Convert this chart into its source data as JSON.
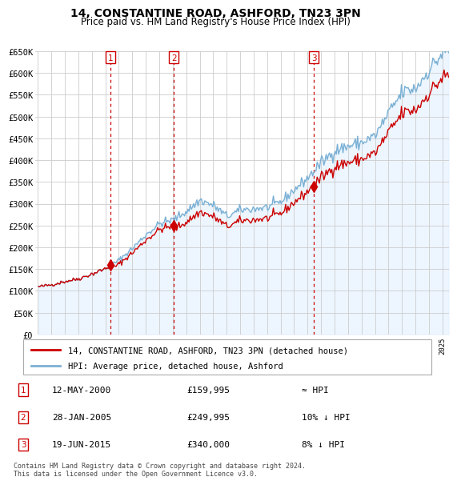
{
  "title": "14, CONSTANTINE ROAD, ASHFORD, TN23 3PN",
  "subtitle": "Price paid vs. HM Land Registry's House Price Index (HPI)",
  "footer": "Contains HM Land Registry data © Crown copyright and database right 2024.\nThis data is licensed under the Open Government Licence v3.0.",
  "legend_property": "14, CONSTANTINE ROAD, ASHFORD, TN23 3PN (detached house)",
  "legend_hpi": "HPI: Average price, detached house, Ashford",
  "sales": [
    {
      "label": "1",
      "date": "12-MAY-2000",
      "price": 159995,
      "note": "≈ HPI",
      "year": 2000.37
    },
    {
      "label": "2",
      "date": "28-JAN-2005",
      "price": 249995,
      "note": "10% ↓ HPI",
      "year": 2005.08
    },
    {
      "label": "3",
      "date": "19-JUN-2015",
      "price": 340000,
      "note": "8% ↓ HPI",
      "year": 2015.46
    }
  ],
  "ylim": [
    0,
    650000
  ],
  "yticks": [
    0,
    50000,
    100000,
    150000,
    200000,
    250000,
    300000,
    350000,
    400000,
    450000,
    500000,
    550000,
    600000,
    650000
  ],
  "ytick_labels": [
    "£0",
    "£50K",
    "£100K",
    "£150K",
    "£200K",
    "£250K",
    "£300K",
    "£350K",
    "£400K",
    "£450K",
    "£500K",
    "£550K",
    "£600K",
    "£650K"
  ],
  "property_color": "#cc0000",
  "hpi_color": "#7ab0d4",
  "fill_color": "#ddeeff",
  "background_color": "#ffffff",
  "grid_color": "#cccccc",
  "vline_color": "#cc0000"
}
